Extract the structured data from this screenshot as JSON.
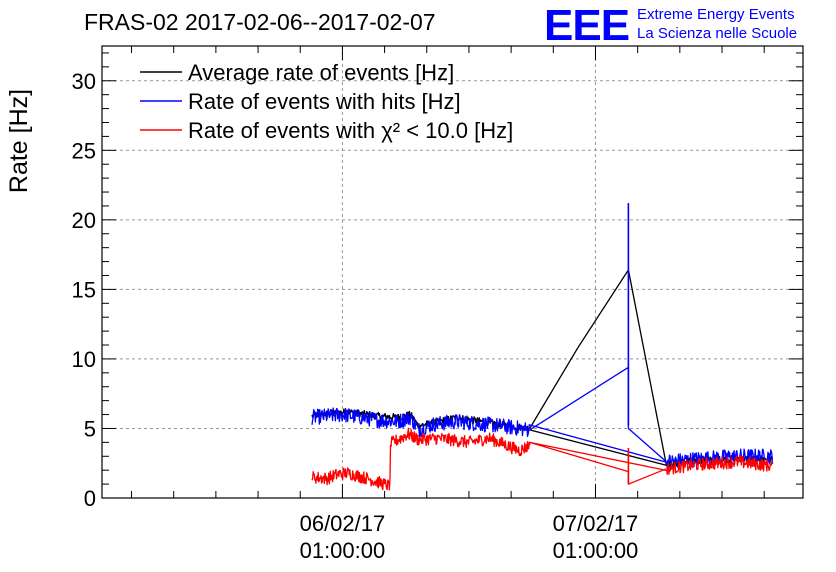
{
  "chart_data": {
    "type": "line",
    "title": "FRAS-02 2017-02-06--2017-02-07",
    "ylabel": "Rate [Hz]",
    "xlabel": "",
    "ylim": [
      0,
      32.5
    ],
    "xlim": [
      -0.95,
      1.82
    ],
    "y_ticks": [
      0,
      5,
      10,
      15,
      20,
      25,
      30
    ],
    "x_ticks": [
      {
        "value": 0,
        "label_date": "06/02/17",
        "label_time": "01:00:00"
      },
      {
        "value": 1,
        "label_date": "07/02/17",
        "label_time": "01:00:00"
      }
    ],
    "x_unit": "days since 06/02/17 01:00:00",
    "grid": true,
    "legend_position": "top-left",
    "series": [
      {
        "name": "Average rate of events [Hz]",
        "color": "#000000",
        "x": [
          -0.12,
          0.02,
          0.14,
          0.22,
          0.27,
          0.3,
          0.36,
          0.45,
          0.62,
          0.74,
          0.93,
          1.13,
          1.28,
          1.4,
          1.56,
          1.7
        ],
        "y": [
          5.9,
          6.2,
          5.9,
          5.8,
          6.0,
          5.2,
          5.4,
          5.8,
          5.3,
          5.0,
          10.8,
          16.4,
          2.4,
          2.7,
          2.8,
          2.8
        ]
      },
      {
        "name": "Rate of events with hits [Hz]",
        "color": "#0000ff",
        "x": [
          -0.12,
          0.0,
          0.14,
          0.22,
          0.27,
          0.3,
          0.36,
          0.45,
          0.62,
          0.74,
          1.13,
          1.13,
          1.28,
          1.4,
          1.56,
          1.7
        ],
        "y": [
          5.8,
          6.0,
          5.6,
          5.5,
          5.8,
          4.9,
          5.3,
          5.5,
          5.2,
          4.9,
          9.4,
          5.0,
          2.6,
          2.8,
          3.0,
          3.0
        ],
        "spikes": [
          {
            "x": 1.13,
            "y_low": 5.2,
            "y_high": 21.2
          }
        ]
      },
      {
        "name": "Rate of events with χ² < 10.0 [Hz]",
        "color": "#ff0000",
        "x": [
          -0.12,
          -0.06,
          -0.02,
          0.02,
          0.1,
          0.18,
          0.19,
          0.19,
          0.26,
          0.3,
          0.38,
          0.5,
          0.58,
          0.66,
          0.7,
          0.74,
          0.74,
          1.13,
          1.13,
          1.28,
          1.4,
          1.56,
          1.7
        ],
        "y": [
          1.5,
          1.4,
          1.7,
          1.8,
          1.4,
          0.9,
          1.0,
          3.9,
          4.6,
          4.2,
          4.3,
          4.0,
          4.3,
          3.7,
          3.4,
          3.8,
          4.0,
          1.9,
          1.0,
          2.1,
          2.4,
          2.6,
          2.3
        ],
        "spikes": [
          {
            "x": 1.13,
            "y_low": 1.0,
            "y_high": 3.6
          }
        ]
      }
    ]
  },
  "logo": {
    "mark": "EEE",
    "line1": "Extreme Energy Events",
    "line2": "La Scienza nelle Scuole",
    "color": "#0000ff"
  }
}
